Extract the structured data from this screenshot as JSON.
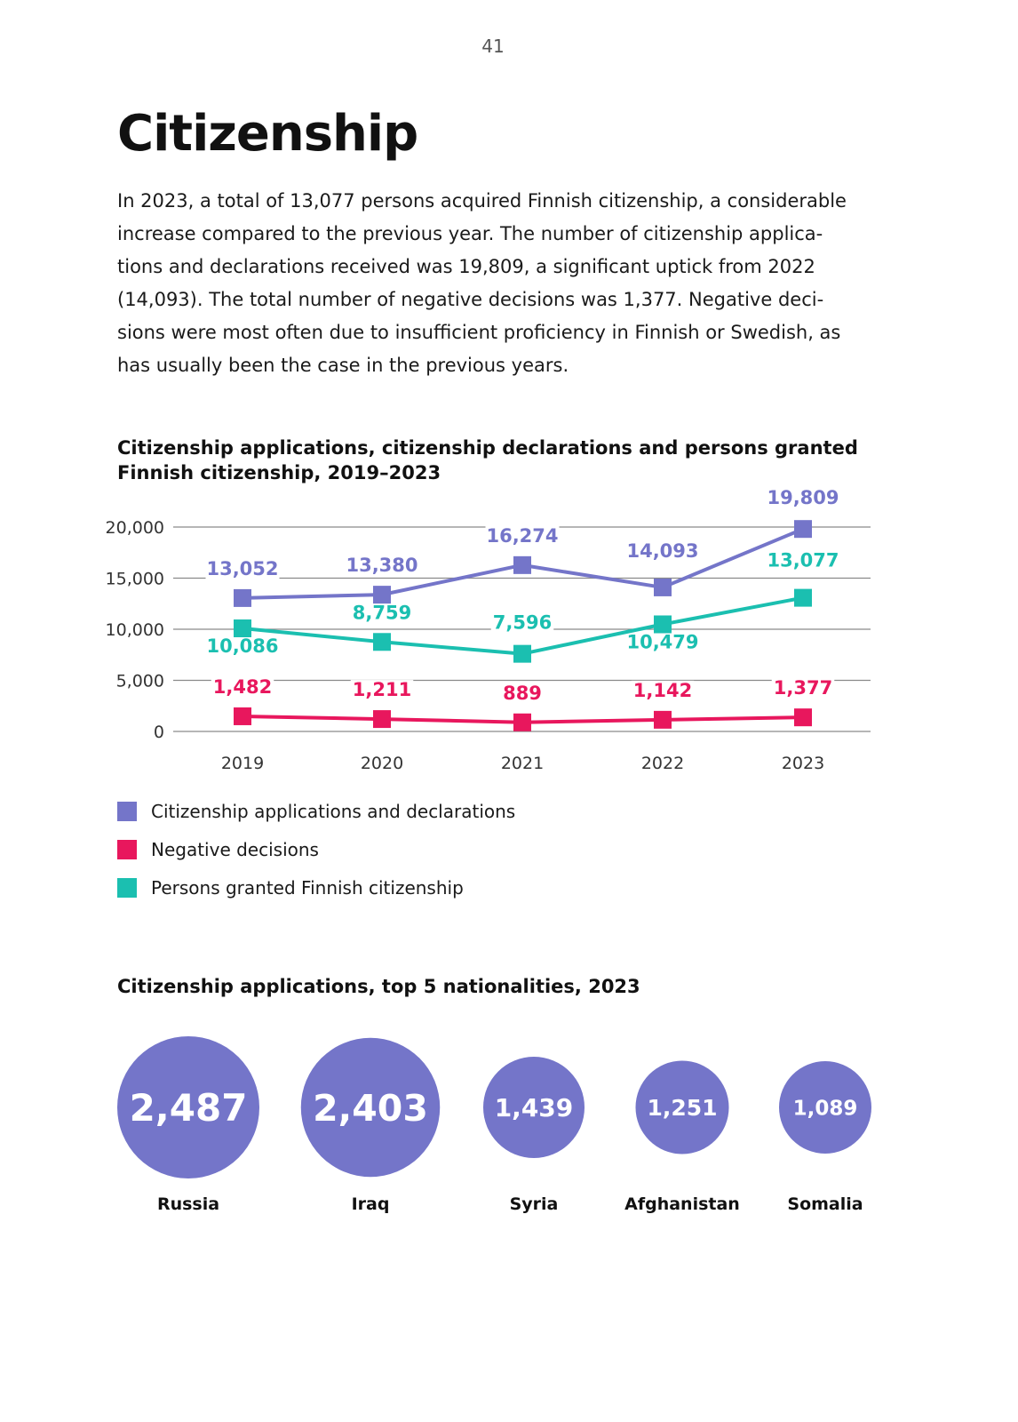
{
  "page": {
    "number": "41",
    "title": "Citizenship"
  },
  "intro_lines": [
    "In 2023, a total of 13,077 persons acquired Finnish citizenship, a considerable",
    "increase compared to the previous year. The number of citizenship applica-",
    "tions and declarations received was 19,809, a significant uptick from 2022",
    "(14,093). The total number of negative decisions was 1,377. Negative deci-",
    "sions were most often due to insufficient proficiency in Finnish or Swedish, as",
    "has usually been the case in the previous years."
  ],
  "chart_data": [
    {
      "type": "line",
      "title": "Citizenship applications, citizenship declarations and persons granted Finnish citizenship, 2019–2023",
      "x": [
        "2019",
        "2020",
        "2021",
        "2022",
        "2023"
      ],
      "ylim": [
        0,
        20000
      ],
      "yticks": [
        0,
        5000,
        10000,
        15000,
        20000
      ],
      "ytick_labels": [
        "0",
        "5,000",
        "10,000",
        "15,000",
        "20,000"
      ],
      "grid": true,
      "legend_position": "bottom-left",
      "series": [
        {
          "name": "Citizenship applications and declarations",
          "color": "#7475c9",
          "values": [
            13052,
            13380,
            16274,
            14093,
            19809
          ],
          "labels": [
            "13,052",
            "13,380",
            "16,274",
            "14,093",
            "19,809"
          ]
        },
        {
          "name": "Negative decisions",
          "color": "#e8175d",
          "values": [
            1482,
            1211,
            889,
            1142,
            1377
          ],
          "labels": [
            "1,482",
            "1,211",
            "889",
            "1,142",
            "1,377"
          ]
        },
        {
          "name": "Persons granted Finnish citizenship",
          "color": "#1bbfb0",
          "values": [
            10086,
            8759,
            7596,
            10479,
            13077
          ],
          "labels": [
            "10,086",
            "8,759",
            "7,596",
            "10,479",
            "13,077"
          ]
        }
      ]
    },
    {
      "type": "bubble",
      "title": "Citizenship applications, top 5 nationalities, 2023",
      "color": "#7475c9",
      "categories": [
        "Russia",
        "Iraq",
        "Syria",
        "Afghanistan",
        "Somalia"
      ],
      "values": [
        2487,
        2403,
        1439,
        1251,
        1089
      ],
      "labels": [
        "2,487",
        "2,403",
        "1,439",
        "1,251",
        "1,089"
      ]
    }
  ]
}
